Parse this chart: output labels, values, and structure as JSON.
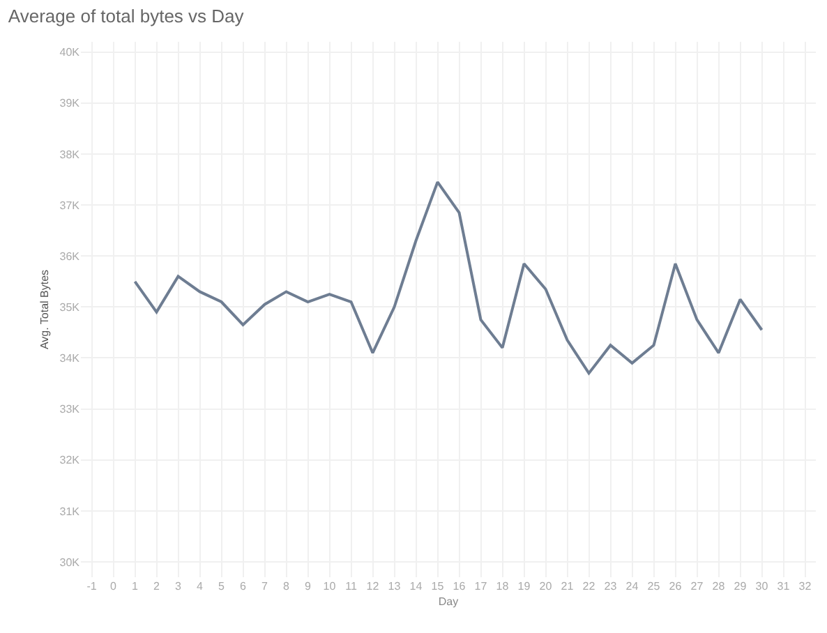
{
  "chart_data": {
    "type": "line",
    "title": "Average of total bytes vs Day",
    "xlabel": "Day",
    "ylabel": "Avg. Total Bytes",
    "x": [
      1,
      2,
      3,
      4,
      5,
      6,
      7,
      8,
      9,
      10,
      11,
      12,
      13,
      14,
      15,
      16,
      17,
      18,
      19,
      20,
      21,
      22,
      23,
      24,
      25,
      26,
      27,
      28,
      29,
      30
    ],
    "series": [
      {
        "color": "#6e7d92",
        "values": [
          35500,
          34900,
          35600,
          35300,
          35100,
          34650,
          35050,
          35300,
          35100,
          35250,
          35100,
          34100,
          35000,
          36300,
          37450,
          36850,
          34750,
          34200,
          35850,
          35350,
          34350,
          33700,
          34250,
          33900,
          34250,
          35850,
          34750,
          34100,
          35150,
          34550
        ]
      }
    ],
    "xlim": [
      -1.5,
      32.5
    ],
    "xticks": [
      -1,
      0,
      1,
      2,
      3,
      4,
      5,
      6,
      7,
      8,
      9,
      10,
      11,
      12,
      13,
      14,
      15,
      16,
      17,
      18,
      19,
      20,
      21,
      22,
      23,
      24,
      25,
      26,
      27,
      28,
      29,
      30,
      31,
      32
    ],
    "ylim": [
      29700,
      40200
    ],
    "yticks": [
      {
        "value": 30000,
        "label": "30K"
      },
      {
        "value": 31000,
        "label": "31K"
      },
      {
        "value": 32000,
        "label": "32K"
      },
      {
        "value": 33000,
        "label": "33K"
      },
      {
        "value": 34000,
        "label": "34K"
      },
      {
        "value": 35000,
        "label": "35K"
      },
      {
        "value": 36000,
        "label": "36K"
      },
      {
        "value": 37000,
        "label": "37K"
      },
      {
        "value": 38000,
        "label": "38K"
      },
      {
        "value": 39000,
        "label": "39K"
      },
      {
        "value": 40000,
        "label": "40K"
      }
    ],
    "grid": true,
    "marker": "none",
    "line_style": "solid",
    "legend": false
  }
}
